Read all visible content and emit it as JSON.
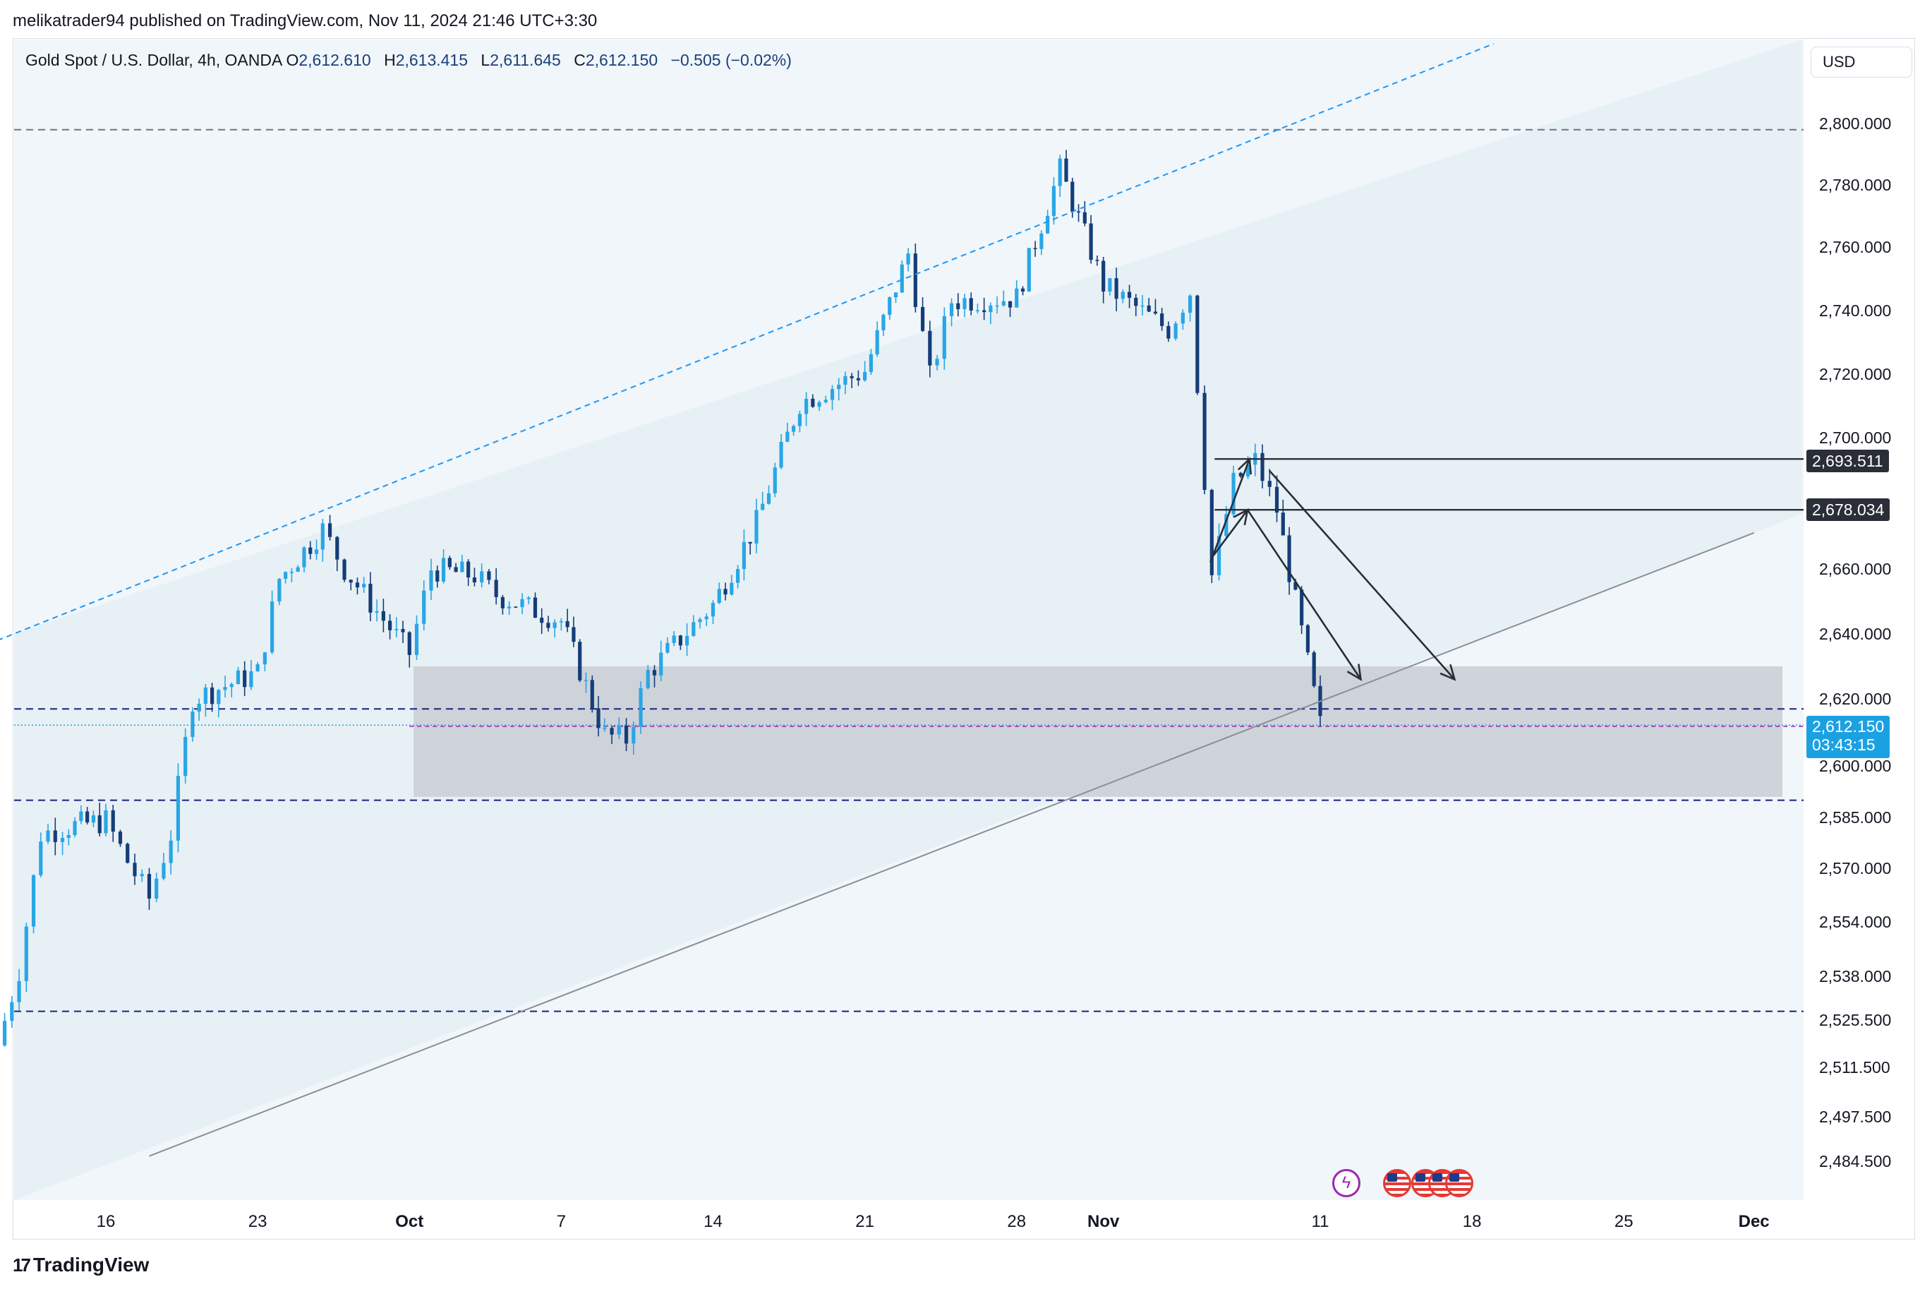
{
  "publisher": "melikatrader94 published on TradingView.com, Nov 11, 2024 21:46 UTC+3:30",
  "legend": {
    "symbol": "Gold Spot / U.S. Dollar, 4h, OANDA",
    "open_label": "O",
    "open": "2,612.610",
    "high_label": "H",
    "high": "2,613.415",
    "low_label": "L",
    "low": "2,611.645",
    "close_label": "C",
    "close": "2,612.150",
    "change": "−0.505 (−0.02%)"
  },
  "currency": "USD",
  "brand": "TradingView",
  "tags": {
    "level1": "2,693.511",
    "level2": "2,678.034",
    "last_price": "2,612.150",
    "countdown": "03:43:15"
  },
  "events": [
    "lightning-icon",
    "us-flag-icon",
    "us-flag-icon",
    "us-flag-icon",
    "us-flag-icon"
  ],
  "colors": {
    "up": "#29a6e5",
    "down": "#153d78",
    "zone": "#c9ccd4",
    "channel": "#2196f3",
    "level": "#1a237e"
  },
  "chart_data": {
    "type": "candlestick",
    "y_ticks": [
      "2,800.000",
      "2,780.000",
      "2,760.000",
      "2,740.000",
      "2,720.000",
      "2,700.000",
      "2,660.000",
      "2,640.000",
      "2,620.000",
      "2,600.000",
      "2,585.000",
      "2,570.000",
      "2,554.000",
      "2,538.000",
      "2,525.500",
      "2,511.500",
      "2,497.500",
      "2,484.500"
    ],
    "x_ticks": [
      "16",
      "23",
      "Oct",
      "7",
      "14",
      "21",
      "28",
      "Nov",
      "11",
      "18",
      "25",
      "Dec"
    ],
    "horizontal_levels": [
      2798,
      2617,
      2590,
      2528
    ],
    "supply_demand_zone": {
      "from": "Sep 30",
      "to": "Dec",
      "top": 2630,
      "bottom": 2591
    },
    "rays": [
      {
        "style": "dashed",
        "from": [
          "Sep 11",
          2638
        ],
        "to": [
          "Nov 19",
          2826
        ]
      },
      {
        "style": "solid",
        "from": [
          "Sep 18",
          2486
        ],
        "to": [
          "Dec",
          2671
        ]
      }
    ],
    "target_levels": [
      2693.511,
      2678.034
    ],
    "closes": [
      [
        "Sep 11",
        2518
      ],
      [
        "Sep 12",
        2540
      ],
      [
        "Sep 13",
        2580
      ],
      [
        "Sep 14",
        2582
      ],
      [
        "Sep 16",
        2584
      ],
      [
        "Sep 17",
        2572
      ],
      [
        "Sep 18",
        2561
      ],
      [
        "Sep 19",
        2580
      ],
      [
        "Sep 20",
        2620
      ],
      [
        "Sep 23",
        2628
      ],
      [
        "Sep 24",
        2657
      ],
      [
        "Sep 26",
        2672
      ],
      [
        "Sep 27",
        2660
      ],
      [
        "Sep 30",
        2634
      ],
      [
        "Oct 1",
        2660
      ],
      [
        "Oct 3",
        2658
      ],
      [
        "Oct 4",
        2652
      ],
      [
        "Oct 7",
        2644
      ],
      [
        "Oct 9",
        2609
      ],
      [
        "Oct 10",
        2608
      ],
      [
        "Oct 11",
        2628
      ],
      [
        "Oct 14",
        2649
      ],
      [
        "Oct 16",
        2674
      ],
      [
        "Oct 18",
        2711
      ],
      [
        "Oct 21",
        2721
      ],
      [
        "Oct 23",
        2758
      ],
      [
        "Oct 24",
        2719
      ],
      [
        "Oct 25",
        2743
      ],
      [
        "Oct 28",
        2744
      ],
      [
        "Oct 30",
        2785
      ],
      [
        "Nov 1",
        2748
      ],
      [
        "Nov 4",
        2734
      ],
      [
        "Nov 5",
        2746
      ],
      [
        "Nov 6",
        2658
      ],
      [
        "Nov 7",
        2686
      ],
      [
        "Nov 8",
        2693
      ],
      [
        "Nov 9",
        2678
      ],
      [
        "Nov 11",
        2612.15
      ]
    ]
  }
}
